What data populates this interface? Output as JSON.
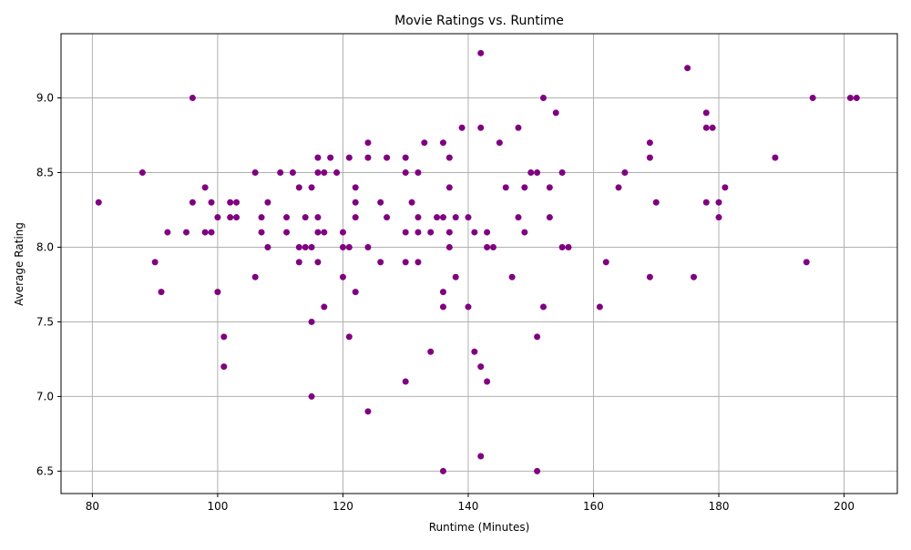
{
  "chart_data": {
    "type": "scatter",
    "title": "Movie Ratings vs. Runtime",
    "xlabel": "Runtime (Minutes)",
    "ylabel": "Average Rating",
    "xlim": [
      75,
      208.5
    ],
    "ylim": [
      6.35,
      9.43
    ],
    "xticks": [
      80,
      100,
      120,
      140,
      160,
      180,
      200
    ],
    "xtick_labels": [
      "80",
      "100",
      "120",
      "140",
      "160",
      "180",
      "200"
    ],
    "yticks": [
      6.5,
      7.0,
      7.5,
      8.0,
      8.5,
      9.0
    ],
    "ytick_labels": [
      "6.5",
      "7.0",
      "7.5",
      "8.0",
      "8.5",
      "9.0"
    ],
    "grid": true,
    "marker_color": "#800080",
    "points": [
      [
        81,
        8.3
      ],
      [
        88,
        8.5
      ],
      [
        90,
        7.9
      ],
      [
        91,
        7.7
      ],
      [
        92,
        8.1
      ],
      [
        95,
        8.1
      ],
      [
        96,
        9.0
      ],
      [
        96,
        8.3
      ],
      [
        98,
        8.4
      ],
      [
        98,
        8.1
      ],
      [
        99,
        8.3
      ],
      [
        99,
        8.1
      ],
      [
        100,
        8.2
      ],
      [
        100,
        7.7
      ],
      [
        101,
        7.4
      ],
      [
        101,
        7.2
      ],
      [
        102,
        8.3
      ],
      [
        102,
        8.2
      ],
      [
        103,
        8.3
      ],
      [
        103,
        8.2
      ],
      [
        106,
        8.5
      ],
      [
        106,
        7.8
      ],
      [
        107,
        8.2
      ],
      [
        107,
        8.1
      ],
      [
        108,
        8.3
      ],
      [
        108,
        8.0
      ],
      [
        110,
        8.5
      ],
      [
        111,
        8.2
      ],
      [
        111,
        8.1
      ],
      [
        112,
        8.5
      ],
      [
        113,
        8.4
      ],
      [
        113,
        8.0
      ],
      [
        113,
        7.9
      ],
      [
        114,
        8.2
      ],
      [
        114,
        8.0
      ],
      [
        115,
        8.4
      ],
      [
        115,
        8.0
      ],
      [
        115,
        7.5
      ],
      [
        115,
        7.0
      ],
      [
        116,
        8.6
      ],
      [
        116,
        8.5
      ],
      [
        116,
        8.2
      ],
      [
        116,
        8.1
      ],
      [
        116,
        7.9
      ],
      [
        117,
        8.5
      ],
      [
        117,
        8.1
      ],
      [
        117,
        7.6
      ],
      [
        118,
        8.6
      ],
      [
        119,
        8.5
      ],
      [
        120,
        8.1
      ],
      [
        120,
        8.0
      ],
      [
        120,
        7.8
      ],
      [
        121,
        8.6
      ],
      [
        121,
        8.0
      ],
      [
        121,
        7.4
      ],
      [
        122,
        8.4
      ],
      [
        122,
        8.3
      ],
      [
        122,
        8.2
      ],
      [
        122,
        7.7
      ],
      [
        124,
        8.7
      ],
      [
        124,
        8.6
      ],
      [
        124,
        8.0
      ],
      [
        124,
        6.9
      ],
      [
        126,
        8.3
      ],
      [
        126,
        7.9
      ],
      [
        127,
        8.6
      ],
      [
        127,
        8.2
      ],
      [
        130,
        8.6
      ],
      [
        130,
        8.5
      ],
      [
        130,
        8.1
      ],
      [
        130,
        7.9
      ],
      [
        130,
        7.1
      ],
      [
        131,
        8.3
      ],
      [
        132,
        8.5
      ],
      [
        132,
        8.2
      ],
      [
        132,
        8.1
      ],
      [
        132,
        7.9
      ],
      [
        133,
        8.7
      ],
      [
        134,
        8.1
      ],
      [
        134,
        7.3
      ],
      [
        135,
        8.2
      ],
      [
        136,
        8.7
      ],
      [
        136,
        8.2
      ],
      [
        136,
        7.7
      ],
      [
        136,
        7.6
      ],
      [
        136,
        6.5
      ],
      [
        137,
        8.6
      ],
      [
        137,
        8.4
      ],
      [
        137,
        8.1
      ],
      [
        137,
        8.0
      ],
      [
        138,
        8.2
      ],
      [
        138,
        7.8
      ],
      [
        139,
        8.8
      ],
      [
        140,
        8.2
      ],
      [
        140,
        7.6
      ],
      [
        141,
        8.1
      ],
      [
        141,
        7.3
      ],
      [
        142,
        9.3
      ],
      [
        142,
        8.8
      ],
      [
        142,
        7.2
      ],
      [
        142,
        6.6
      ],
      [
        143,
        8.1
      ],
      [
        143,
        8.0
      ],
      [
        143,
        7.1
      ],
      [
        144,
        8.0
      ],
      [
        145,
        8.7
      ],
      [
        146,
        8.4
      ],
      [
        147,
        7.8
      ],
      [
        148,
        8.8
      ],
      [
        148,
        8.2
      ],
      [
        149,
        8.4
      ],
      [
        149,
        8.1
      ],
      [
        150,
        8.5
      ],
      [
        151,
        8.5
      ],
      [
        151,
        7.4
      ],
      [
        151,
        6.5
      ],
      [
        152,
        9.0
      ],
      [
        152,
        7.6
      ],
      [
        153,
        8.4
      ],
      [
        153,
        8.2
      ],
      [
        154,
        8.9
      ],
      [
        155,
        8.5
      ],
      [
        155,
        8.0
      ],
      [
        156,
        8.0
      ],
      [
        161,
        7.6
      ],
      [
        162,
        7.9
      ],
      [
        164,
        8.4
      ],
      [
        165,
        8.5
      ],
      [
        169,
        8.7
      ],
      [
        169,
        8.6
      ],
      [
        169,
        7.8
      ],
      [
        170,
        8.3
      ],
      [
        175,
        9.2
      ],
      [
        176,
        7.8
      ],
      [
        178,
        8.9
      ],
      [
        178,
        8.8
      ],
      [
        178,
        8.3
      ],
      [
        179,
        8.8
      ],
      [
        180,
        8.3
      ],
      [
        180,
        8.2
      ],
      [
        181,
        8.4
      ],
      [
        189,
        8.6
      ],
      [
        194,
        7.9
      ],
      [
        195,
        9.0
      ],
      [
        201,
        9.0
      ],
      [
        202,
        9.0
      ]
    ]
  }
}
